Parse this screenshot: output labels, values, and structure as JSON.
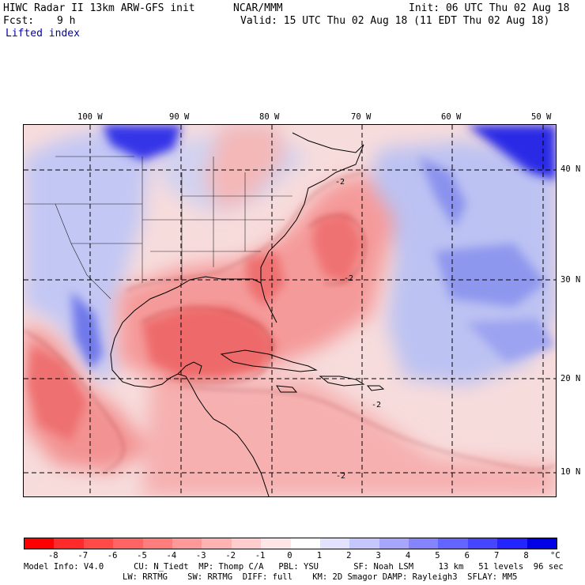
{
  "header": {
    "title": "HIWC Radar II 13km ARW-GFS init",
    "center": "NCAR/MMM",
    "init": "Init: 06 UTC Thu 02 Aug 18",
    "fcst_label": "Fcst:",
    "fcst_value": "9 h",
    "valid": "Valid: 15 UTC Thu 02 Aug 18 (11 EDT Thu 02 Aug 18)",
    "field": "Lifted index"
  },
  "map": {
    "lon_labels": [
      "100 W",
      "90 W",
      "80 W",
      "70 W",
      "60 W",
      "50 W"
    ],
    "lat_labels": [
      "40 N",
      "30 N",
      "20 N",
      "10 N"
    ],
    "contour_labels": [
      "-2",
      "-2",
      "-2",
      "-2"
    ]
  },
  "colorbar": {
    "unit": "°C",
    "ticks": [
      "-8",
      "-7",
      "-6",
      "-5",
      "-4",
      "-3",
      "-2",
      "-1",
      "0",
      "1",
      "2",
      "3",
      "4",
      "5",
      "6",
      "7",
      "8"
    ],
    "colors": [
      "#ff0000",
      "#ff2a2a",
      "#ff4a4a",
      "#ff6464",
      "#ff7d7d",
      "#ff9898",
      "#ffb2b2",
      "#ffcdcd",
      "#ffe6e6",
      "#ffffff",
      "#e2e2ff",
      "#c6c6ff",
      "#a6a6ff",
      "#8484ff",
      "#6464ff",
      "#4646ff",
      "#2424ff",
      "#0000e6"
    ]
  },
  "model_info": {
    "line1": "Model Info: V4.0      CU: N_Tiedt  MP: Thomp C/A   PBL: YSU       SF: Noah LSM     13 km   51 levels  96 sec",
    "line2": "LW: RRTMG    SW: RRTMG  DIFF: full    KM: 2D Smagor DAMP: Rayleigh3  SFLAY: MM5"
  }
}
